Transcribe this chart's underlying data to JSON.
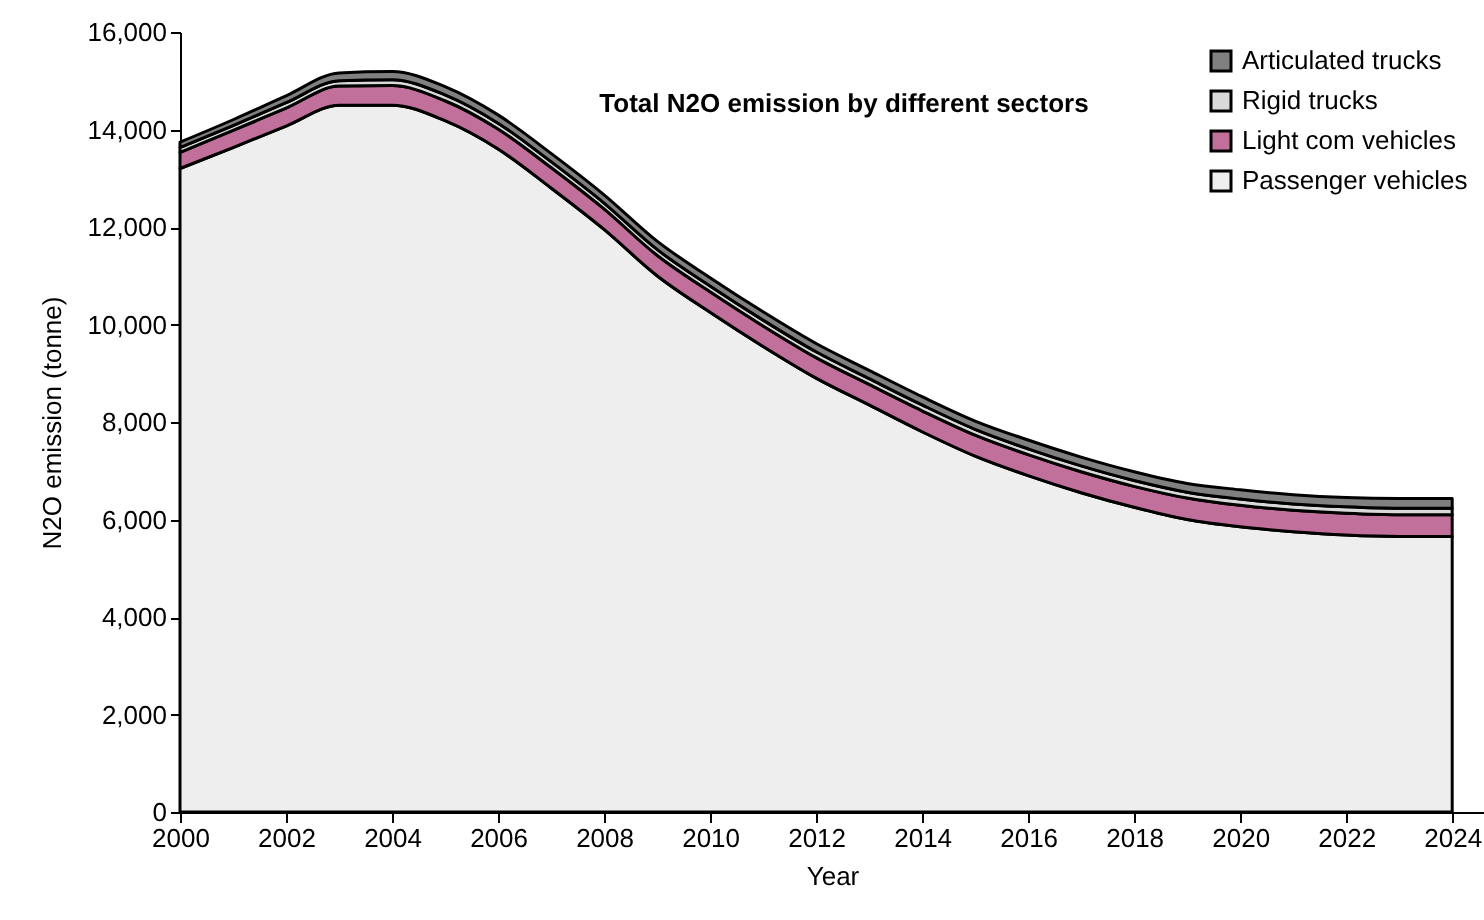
{
  "chart_data": {
    "type": "area",
    "title": "Total N2O emission by different sectors",
    "xlabel": "Year",
    "ylabel": "N2O emission (tonne)",
    "stacked": true,
    "x": [
      2000,
      2001,
      2002,
      2003,
      2004,
      2005,
      2006,
      2007,
      2008,
      2009,
      2010,
      2011,
      2012,
      2013,
      2014,
      2015,
      2016,
      2017,
      2018,
      2019,
      2020,
      2021,
      2022,
      2023,
      2024
    ],
    "series": [
      {
        "name": "Passenger vehicles",
        "color": "#eeeeee",
        "values": [
          13200,
          13630,
          14070,
          14500,
          14500,
          14180,
          13600,
          12800,
          11950,
          11000,
          10250,
          9550,
          8900,
          8350,
          7800,
          7300,
          6900,
          6550,
          6250,
          6000,
          5850,
          5750,
          5680,
          5650,
          5650
        ]
      },
      {
        "name": "Light com vehicles",
        "color": "#c0709a",
        "values": [
          330,
          350,
          370,
          390,
          400,
          410,
          410,
          420,
          420,
          420,
          420,
          420,
          420,
          420,
          430,
          430,
          430,
          430,
          430,
          440,
          440,
          440,
          450,
          450,
          450
        ]
      },
      {
        "name": "Rigid trucks",
        "color": "#d9d9d9",
        "values": [
          100,
          100,
          110,
          110,
          120,
          120,
          120,
          120,
          120,
          120,
          120,
          120,
          120,
          120,
          120,
          120,
          120,
          120,
          120,
          120,
          130,
          130,
          130,
          130,
          130
        ]
      },
      {
        "name": "Articulated trucks",
        "color": "#808080",
        "values": [
          110,
          120,
          140,
          160,
          170,
          170,
          170,
          170,
          170,
          170,
          170,
          170,
          170,
          170,
          170,
          170,
          180,
          180,
          180,
          180,
          190,
          190,
          190,
          200,
          200
        ]
      }
    ],
    "xlim": [
      2000,
      2024.6
    ],
    "xticks": [
      2000,
      2002,
      2004,
      2006,
      2008,
      2010,
      2012,
      2014,
      2016,
      2018,
      2020,
      2022,
      2024
    ],
    "ylim": [
      0,
      16000
    ],
    "yticks": [
      {
        "value": 0,
        "label": "0"
      },
      {
        "value": 2000,
        "label": "2,000"
      },
      {
        "value": 4000,
        "label": "4,000"
      },
      {
        "value": 6000,
        "label": "6,000"
      },
      {
        "value": 8000,
        "label": "8,000"
      },
      {
        "value": 10000,
        "label": "10,000"
      },
      {
        "value": 12000,
        "label": "12,000"
      },
      {
        "value": 14000,
        "label": "14,000"
      },
      {
        "value": 16000,
        "label": "16,000"
      }
    ],
    "grid": false,
    "legend": "top right"
  }
}
